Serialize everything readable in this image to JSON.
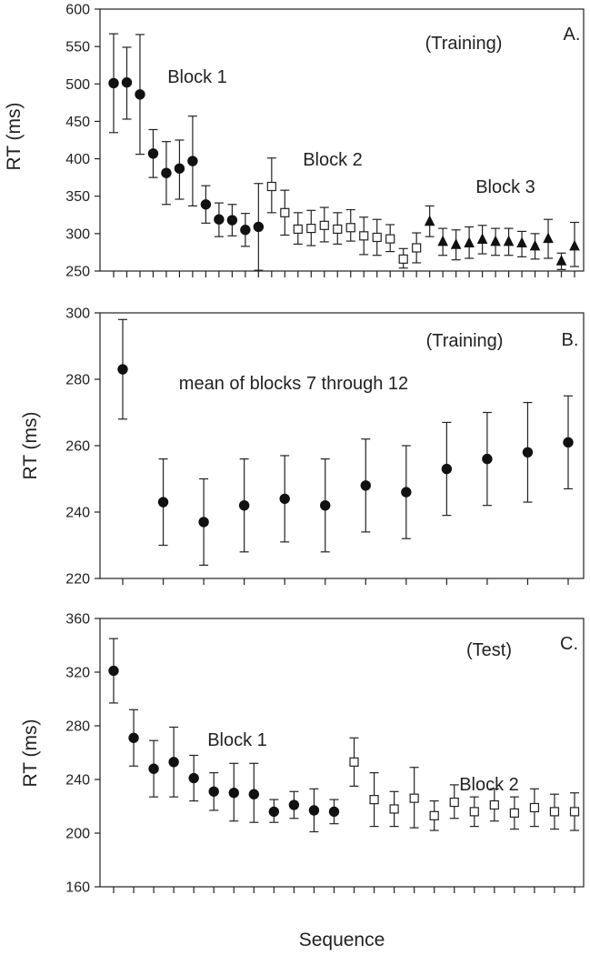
{
  "chart_data": [
    {
      "type": "scatter",
      "panel_label": "A.",
      "condition_label": "(Training)",
      "ylabel": "RT (ms)",
      "ylim": [
        250,
        600
      ],
      "yticks": [
        250,
        300,
        350,
        400,
        450,
        500,
        550,
        600
      ],
      "n_positions": 36,
      "annotations": [
        "Block 1",
        "Block 2",
        "Block 3"
      ],
      "series": [
        {
          "marker": "filled-circle",
          "x": [
            1,
            2,
            3,
            4,
            5,
            6,
            7,
            8,
            9,
            10,
            11,
            12
          ],
          "y": [
            501,
            502,
            486,
            407,
            381,
            387,
            397,
            339,
            319,
            318,
            305,
            309
          ],
          "err_low": [
            435,
            453,
            406,
            375,
            339,
            346,
            337,
            314,
            296,
            297,
            283,
            251
          ],
          "err_high": [
            567,
            549,
            566,
            439,
            423,
            425,
            457,
            364,
            341,
            339,
            327,
            367
          ]
        },
        {
          "marker": "open-square",
          "x": [
            13,
            14,
            15,
            16,
            17,
            18,
            19,
            20,
            21,
            22,
            23,
            24
          ],
          "y": [
            363,
            328,
            306,
            307,
            311,
            306,
            308,
            297,
            295,
            293,
            266,
            281
          ],
          "err_low": [
            328,
            298,
            286,
            284,
            289,
            286,
            290,
            272,
            271,
            276,
            254,
            261
          ],
          "err_high": [
            401,
            358,
            328,
            331,
            335,
            328,
            332,
            322,
            319,
            312,
            280,
            301
          ]
        },
        {
          "marker": "filled-triangle",
          "x": [
            25,
            26,
            27,
            28,
            29,
            30,
            31,
            32,
            33,
            34,
            35,
            36
          ],
          "y": [
            316,
            289,
            285,
            287,
            292,
            289,
            289,
            287,
            283,
            293,
            263,
            283
          ],
          "err_low": [
            296,
            271,
            265,
            267,
            273,
            271,
            271,
            269,
            266,
            267,
            252,
            256
          ],
          "err_high": [
            337,
            307,
            305,
            309,
            311,
            307,
            307,
            303,
            300,
            319,
            274,
            315
          ]
        }
      ]
    },
    {
      "type": "scatter",
      "panel_label": "B.",
      "condition_label": "(Training)",
      "ylabel": "RT (ms)",
      "ylim": [
        220,
        300
      ],
      "yticks": [
        220,
        240,
        260,
        280,
        300
      ],
      "n_positions": 12,
      "annotations": [
        "mean of blocks 7 through 12"
      ],
      "series": [
        {
          "marker": "filled-circle",
          "x": [
            1,
            2,
            3,
            4,
            5,
            6,
            7,
            8,
            9,
            10,
            11,
            12
          ],
          "y": [
            283,
            243,
            237,
            242,
            244,
            242,
            248,
            246,
            253,
            256,
            258,
            261
          ],
          "err_low": [
            268,
            230,
            224,
            228,
            231,
            228,
            234,
            232,
            239,
            242,
            243,
            247
          ],
          "err_high": [
            298,
            256,
            250,
            256,
            257,
            256,
            262,
            260,
            267,
            270,
            273,
            275
          ]
        }
      ]
    },
    {
      "type": "scatter",
      "panel_label": "C.",
      "condition_label": "(Test)",
      "ylabel": "RT (ms)",
      "xlabel": "Sequence",
      "ylim": [
        160,
        360
      ],
      "yticks": [
        160,
        200,
        240,
        280,
        320,
        360
      ],
      "n_positions": 24,
      "annotations": [
        "Block 1",
        "Block 2"
      ],
      "series": [
        {
          "marker": "filled-circle",
          "x": [
            1,
            2,
            3,
            4,
            5,
            6,
            7,
            8,
            9,
            10,
            11,
            12
          ],
          "y": [
            321,
            271,
            248,
            253,
            241,
            231,
            230,
            229,
            216,
            221,
            217,
            216
          ],
          "err_low": [
            297,
            250,
            227,
            227,
            224,
            217,
            209,
            208,
            208,
            211,
            201,
            207
          ],
          "err_high": [
            345,
            292,
            269,
            279,
            258,
            245,
            252,
            252,
            225,
            231,
            233,
            225
          ]
        },
        {
          "marker": "open-square",
          "x": [
            13,
            14,
            15,
            16,
            17,
            18,
            19,
            20,
            21,
            22,
            23,
            24
          ],
          "y": [
            253,
            225,
            218,
            226,
            213,
            223,
            216,
            221,
            215,
            219,
            216,
            216
          ],
          "err_low": [
            235,
            205,
            205,
            204,
            202,
            211,
            205,
            209,
            203,
            205,
            203,
            202
          ],
          "err_high": [
            271,
            245,
            231,
            249,
            224,
            236,
            227,
            233,
            227,
            233,
            229,
            230
          ]
        }
      ]
    }
  ]
}
